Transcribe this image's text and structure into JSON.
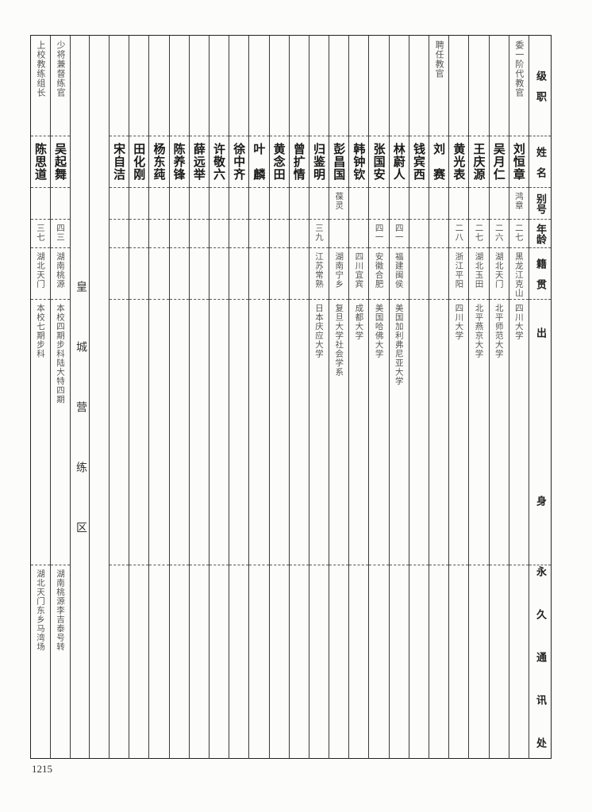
{
  "header": {
    "rank": "级　职",
    "name": "姓　名",
    "alias": "别号",
    "age": "年龄",
    "origin": "籍　贯",
    "background": "出　　　身",
    "address": "永　久　通　讯　处"
  },
  "persons": [
    {
      "rank": "委一阶代教官",
      "name": "刘恒章",
      "alias": "鸿章",
      "age": "二七",
      "origin": "黑龙江克山",
      "background": "四川大学",
      "address": ""
    },
    {
      "rank": "",
      "name": "吴月仁",
      "alias": "",
      "age": "二六",
      "origin": "湖北天门",
      "background": "北平师范大学",
      "address": ""
    },
    {
      "rank": "",
      "name": "王庆源",
      "alias": "",
      "age": "二七",
      "origin": "湖北玉田",
      "background": "北平燕京大学",
      "address": ""
    },
    {
      "rank": "",
      "name": "黄光表",
      "alias": "",
      "age": "二八",
      "origin": "浙江平阳",
      "background": "四川大学",
      "address": ""
    },
    {
      "rank": "聘任教官",
      "name": "刘　赛",
      "alias": "",
      "age": "",
      "origin": "",
      "background": "",
      "address": ""
    },
    {
      "rank": "",
      "name": "钱宾西",
      "alias": "",
      "age": "",
      "origin": "",
      "background": "",
      "address": ""
    },
    {
      "rank": "",
      "name": "林蔚人",
      "alias": "",
      "age": "四一",
      "origin": "福建闽侯",
      "background": "美国加利弗尼亚大学",
      "address": ""
    },
    {
      "rank": "",
      "name": "张国安",
      "alias": "",
      "age": "四一",
      "origin": "安徽合肥",
      "background": "美国哈佛大学",
      "address": ""
    },
    {
      "rank": "",
      "name": "韩钟钦",
      "alias": "",
      "age": "",
      "origin": "四川宜宾",
      "background": "成都大学",
      "address": ""
    },
    {
      "rank": "",
      "name": "彭昌国",
      "alias": "葆灵",
      "age": "",
      "origin": "湖南宁乡",
      "background": "复旦大学社会学系",
      "address": ""
    },
    {
      "rank": "",
      "name": "归鉴明",
      "alias": "",
      "age": "三九",
      "origin": "江苏常熟",
      "background": "日本庆应大学",
      "address": ""
    },
    {
      "rank": "",
      "name": "曾扩情",
      "alias": "",
      "age": "",
      "origin": "",
      "background": "",
      "address": ""
    },
    {
      "rank": "",
      "name": "黄念田",
      "alias": "",
      "age": "",
      "origin": "",
      "background": "",
      "address": ""
    },
    {
      "rank": "",
      "name": "叶　麟",
      "alias": "",
      "age": "",
      "origin": "",
      "background": "",
      "address": ""
    },
    {
      "rank": "",
      "name": "徐中齐",
      "alias": "",
      "age": "",
      "origin": "",
      "background": "",
      "address": ""
    },
    {
      "rank": "",
      "name": "许敬六",
      "alias": "",
      "age": "",
      "origin": "",
      "background": "",
      "address": ""
    },
    {
      "rank": "",
      "name": "薛远举",
      "alias": "",
      "age": "",
      "origin": "",
      "background": "",
      "address": ""
    },
    {
      "rank": "",
      "name": "陈养锋",
      "alias": "",
      "age": "",
      "origin": "",
      "background": "",
      "address": ""
    },
    {
      "rank": "",
      "name": "杨东莼",
      "alias": "",
      "age": "",
      "origin": "",
      "background": "",
      "address": ""
    },
    {
      "rank": "",
      "name": "田化刚",
      "alias": "",
      "age": "",
      "origin": "",
      "background": "",
      "address": ""
    },
    {
      "rank": "",
      "name": "宋自洁",
      "alias": "",
      "age": "",
      "origin": "",
      "background": "",
      "address": ""
    }
  ],
  "section_title": "皇　城　营　练　区",
  "section_persons": [
    {
      "rank": "少将兼督练官",
      "name": "吴起舞",
      "alias": "",
      "age": "四三",
      "origin": "湖南桃源",
      "background": "本校四期步科陆大特四期",
      "address": "湖南桃源李吉泰号转"
    },
    {
      "rank": "上校教练组长",
      "name": "陈思道",
      "alias": "",
      "age": "三七",
      "origin": "湖北天门",
      "background": "本校七期步科",
      "address": "湖北天门东乡马湾场"
    }
  ],
  "page_number": "1215"
}
